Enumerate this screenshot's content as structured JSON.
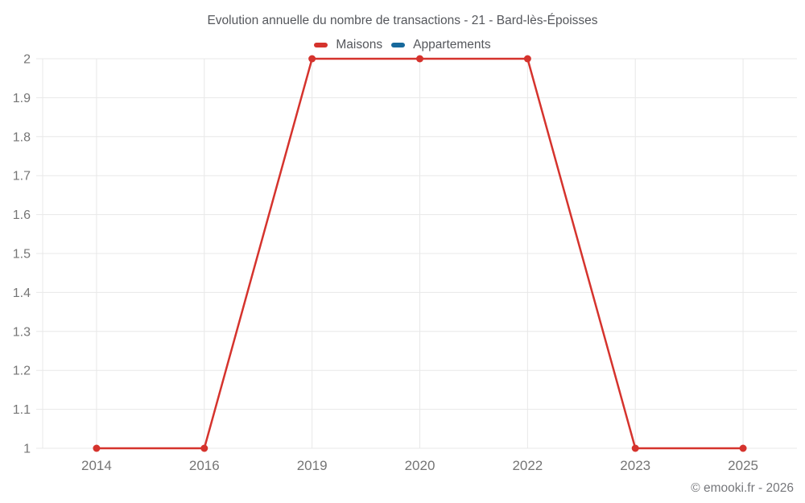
{
  "chart_data": {
    "type": "line",
    "title": "Evolution annuelle du nombre de transactions - 21 - Bard-lès-Époisses",
    "categories": [
      "2014",
      "2016",
      "2019",
      "2020",
      "2022",
      "2023",
      "2025"
    ],
    "series": [
      {
        "name": "Maisons",
        "color": "#d5332d",
        "values": [
          1,
          1,
          2,
          2,
          2,
          1,
          1
        ]
      },
      {
        "name": "Appartements",
        "color": "#17699c",
        "values": []
      }
    ],
    "xlabel": "",
    "ylabel": "",
    "ylim": [
      1,
      2
    ],
    "y_ticks": [
      {
        "value": 1,
        "label": "1"
      },
      {
        "value": 1.1,
        "label": "1.1"
      },
      {
        "value": 1.2,
        "label": "1.2"
      },
      {
        "value": 1.3,
        "label": "1.3"
      },
      {
        "value": 1.4,
        "label": "1.4"
      },
      {
        "value": 1.5,
        "label": "1.5"
      },
      {
        "value": 1.6,
        "label": "1.6"
      },
      {
        "value": 1.7,
        "label": "1.7"
      },
      {
        "value": 1.8,
        "label": "1.8"
      },
      {
        "value": 1.9,
        "label": "1.9"
      },
      {
        "value": 2,
        "label": "2"
      }
    ],
    "grid": true,
    "grid_color": "#e8e8e8",
    "legend_position": "top"
  },
  "footer": {
    "credit": "© emooki.fr - 2026"
  }
}
